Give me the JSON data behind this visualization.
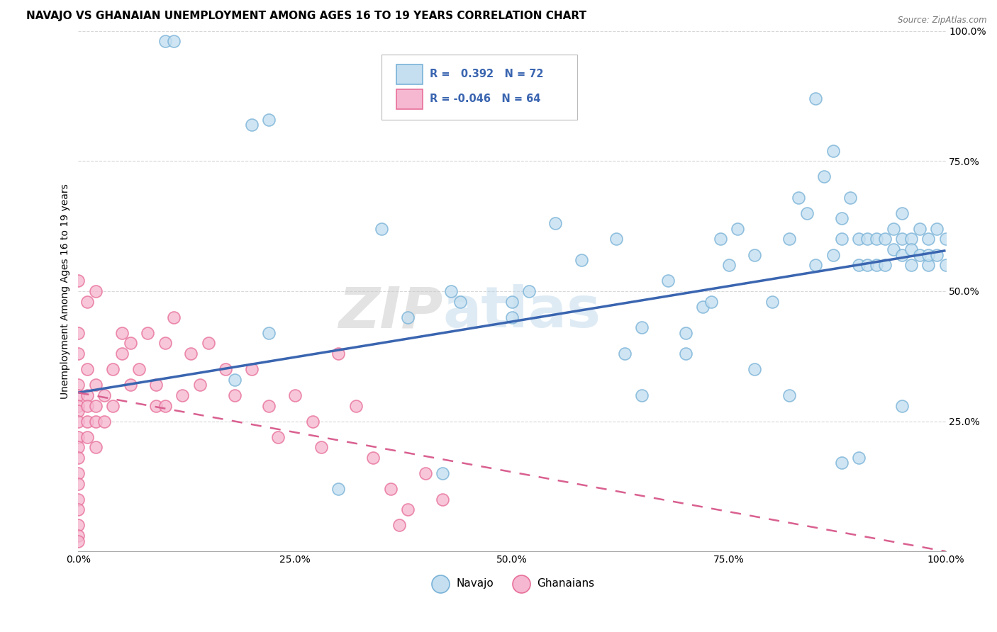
{
  "title": "NAVAJO VS GHANAIAN UNEMPLOYMENT AMONG AGES 16 TO 19 YEARS CORRELATION CHART",
  "source": "Source: ZipAtlas.com",
  "ylabel": "Unemployment Among Ages 16 to 19 years",
  "xlim": [
    0,
    1
  ],
  "ylim": [
    0,
    1
  ],
  "xticks": [
    0.0,
    0.25,
    0.5,
    0.75,
    1.0
  ],
  "xticklabels": [
    "0.0%",
    "25.0%",
    "50.0%",
    "75.0%",
    "100.0%"
  ],
  "yticks": [
    0.25,
    0.5,
    0.75,
    1.0
  ],
  "yticklabels": [
    "25.0%",
    "50.0%",
    "75.0%",
    "100.0%"
  ],
  "navajo_R": 0.392,
  "navajo_N": 72,
  "ghanaian_R": -0.046,
  "ghanaian_N": 64,
  "navajo_color": "#7ab3d8",
  "navajo_face": "#c5dff0",
  "ghanaian_color": "#e8709a",
  "ghanaian_face": "#f5b8d0",
  "navajo_trendline_color": "#3a65b0",
  "ghanaian_trendline_color": "#d96090",
  "navajo_scatter_x": [
    0.1,
    0.11,
    0.2,
    0.22,
    0.35,
    0.38,
    0.43,
    0.44,
    0.5,
    0.55,
    0.58,
    0.62,
    0.63,
    0.65,
    0.68,
    0.7,
    0.72,
    0.74,
    0.75,
    0.76,
    0.78,
    0.8,
    0.82,
    0.83,
    0.84,
    0.85,
    0.86,
    0.87,
    0.88,
    0.88,
    0.89,
    0.9,
    0.9,
    0.91,
    0.91,
    0.92,
    0.92,
    0.93,
    0.93,
    0.94,
    0.94,
    0.95,
    0.95,
    0.95,
    0.96,
    0.96,
    0.96,
    0.97,
    0.97,
    0.98,
    0.98,
    0.98,
    0.99,
    0.99,
    1.0,
    1.0,
    0.5,
    0.7,
    0.78,
    0.85,
    0.87,
    0.9,
    0.42,
    0.3,
    0.18,
    0.22,
    0.65,
    0.73,
    0.82,
    0.88,
    0.95,
    0.52
  ],
  "navajo_scatter_y": [
    0.98,
    0.98,
    0.82,
    0.83,
    0.62,
    0.45,
    0.5,
    0.48,
    0.48,
    0.63,
    0.56,
    0.6,
    0.38,
    0.43,
    0.52,
    0.42,
    0.47,
    0.6,
    0.55,
    0.62,
    0.57,
    0.48,
    0.6,
    0.68,
    0.65,
    0.55,
    0.72,
    0.57,
    0.64,
    0.6,
    0.68,
    0.55,
    0.6,
    0.6,
    0.55,
    0.6,
    0.55,
    0.6,
    0.55,
    0.58,
    0.62,
    0.57,
    0.6,
    0.65,
    0.55,
    0.6,
    0.58,
    0.57,
    0.62,
    0.55,
    0.6,
    0.57,
    0.57,
    0.62,
    0.55,
    0.6,
    0.45,
    0.38,
    0.35,
    0.87,
    0.77,
    0.18,
    0.15,
    0.12,
    0.33,
    0.42,
    0.3,
    0.48,
    0.3,
    0.17,
    0.28,
    0.5
  ],
  "ghanaian_scatter_x": [
    0.0,
    0.0,
    0.0,
    0.0,
    0.0,
    0.0,
    0.0,
    0.0,
    0.0,
    0.0,
    0.0,
    0.0,
    0.0,
    0.0,
    0.0,
    0.0,
    0.0,
    0.01,
    0.01,
    0.01,
    0.01,
    0.01,
    0.02,
    0.02,
    0.02,
    0.02,
    0.03,
    0.03,
    0.04,
    0.04,
    0.05,
    0.05,
    0.06,
    0.06,
    0.07,
    0.08,
    0.09,
    0.09,
    0.1,
    0.1,
    0.11,
    0.12,
    0.13,
    0.14,
    0.15,
    0.17,
    0.18,
    0.2,
    0.22,
    0.23,
    0.25,
    0.27,
    0.28,
    0.3,
    0.32,
    0.34,
    0.36,
    0.38,
    0.4,
    0.42,
    0.02,
    0.01,
    0.0,
    0.37
  ],
  "ghanaian_scatter_y": [
    0.32,
    0.3,
    0.28,
    0.27,
    0.25,
    0.22,
    0.2,
    0.18,
    0.15,
    0.13,
    0.1,
    0.08,
    0.05,
    0.03,
    0.02,
    0.38,
    0.42,
    0.35,
    0.3,
    0.28,
    0.25,
    0.22,
    0.32,
    0.28,
    0.25,
    0.2,
    0.3,
    0.25,
    0.35,
    0.28,
    0.42,
    0.38,
    0.4,
    0.32,
    0.35,
    0.42,
    0.32,
    0.28,
    0.4,
    0.28,
    0.45,
    0.3,
    0.38,
    0.32,
    0.4,
    0.35,
    0.3,
    0.35,
    0.28,
    0.22,
    0.3,
    0.25,
    0.2,
    0.38,
    0.28,
    0.18,
    0.12,
    0.08,
    0.15,
    0.1,
    0.5,
    0.48,
    0.52,
    0.05
  ],
  "watermark": "ZIPatlas",
  "background_color": "#ffffff",
  "grid_color": "#d8d8d8",
  "title_fontsize": 11,
  "axis_fontsize": 10,
  "tick_fontsize": 10,
  "legend_box_color_navajo": "#c5dff0",
  "legend_box_color_ghanaian": "#f5b8d0",
  "navajo_trendline_start_y": 0.305,
  "navajo_trendline_end_y": 0.578,
  "ghanaian_trendline_start_y": 0.305,
  "ghanaian_trendline_end_y": 0.0
}
